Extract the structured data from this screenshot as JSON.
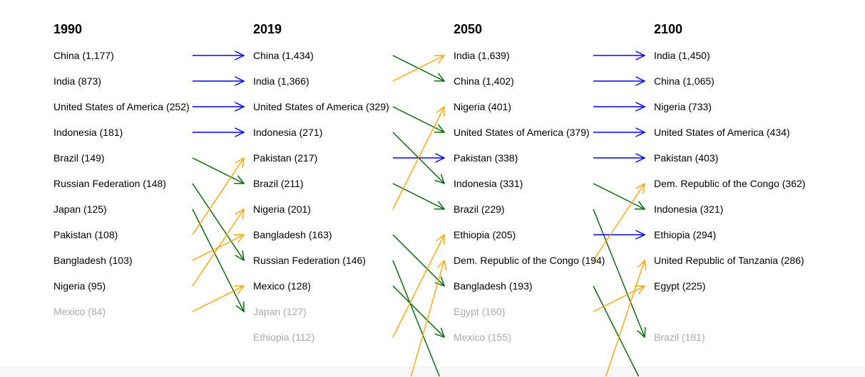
{
  "colors": {
    "same": "#0000ff",
    "down": "#006400",
    "up": "#ffa500",
    "out": "#aaaaaa"
  },
  "columns": [
    {
      "year": "1990",
      "items": [
        {
          "label": "China (1,177)"
        },
        {
          "label": "India (873)"
        },
        {
          "label": "United States of America (252)"
        },
        {
          "label": "Indonesia (181)"
        },
        {
          "label": "Brazil (149)"
        },
        {
          "label": "Russian Federation (148)"
        },
        {
          "label": "Japan (125)"
        },
        {
          "label": "Pakistan (108)"
        },
        {
          "label": "Bangladesh (103)"
        },
        {
          "label": "Nigeria (95)"
        },
        {
          "label": "Mexico (84)",
          "grey": true
        }
      ]
    },
    {
      "year": "2019",
      "items": [
        {
          "label": "China (1,434)"
        },
        {
          "label": "India (1,366)"
        },
        {
          "label": "United States of America (329)"
        },
        {
          "label": "Indonesia (271)"
        },
        {
          "label": "Pakistan (217)"
        },
        {
          "label": "Brazil (211)"
        },
        {
          "label": "Nigeria (201)"
        },
        {
          "label": "Bangladesh (163)"
        },
        {
          "label": "Russian Federation (146)"
        },
        {
          "label": "Mexico (128)"
        },
        {
          "label": "Japan (127)",
          "grey": true
        },
        {
          "label": "Ethiopia (112)",
          "grey": true
        }
      ]
    },
    {
      "year": "2050",
      "items": [
        {
          "label": "India (1,639)"
        },
        {
          "label": "China (1,402)"
        },
        {
          "label": "Nigeria (401)"
        },
        {
          "label": "United States of America (379)"
        },
        {
          "label": "Pakistan (338)"
        },
        {
          "label": "Indonesia (331)"
        },
        {
          "label": "Brazil (229)"
        },
        {
          "label": "Ethiopia (205)"
        },
        {
          "label": "Dem. Republic of the Congo (194)"
        },
        {
          "label": "Bangladesh (193)"
        },
        {
          "label": "Egypt (160)",
          "grey": true
        },
        {
          "label": "Mexico (155)",
          "grey": true
        }
      ]
    },
    {
      "year": "2100",
      "items": [
        {
          "label": "India (1,450)"
        },
        {
          "label": "China (1,065)"
        },
        {
          "label": "Nigeria (733)"
        },
        {
          "label": "United States of America (434)"
        },
        {
          "label": "Pakistan (403)"
        },
        {
          "label": "Dem. Republic of the Congo (362)"
        },
        {
          "label": "Indonesia (321)"
        },
        {
          "label": "Ethiopia (294)"
        },
        {
          "label": "United Republic of Tanzania (286)"
        },
        {
          "label": "Egypt (225)"
        },
        {
          "label": "",
          "grey": true
        },
        {
          "label": "Brazil (181)",
          "grey": true
        }
      ]
    }
  ],
  "transitions": [
    [
      [
        0,
        0,
        "same"
      ],
      [
        1,
        1,
        "same"
      ],
      [
        2,
        2,
        "same"
      ],
      [
        3,
        3,
        "same"
      ],
      [
        4,
        5,
        "down"
      ],
      [
        5,
        8,
        "down"
      ],
      [
        6,
        10,
        "down"
      ],
      [
        7,
        4,
        "up"
      ],
      [
        8,
        7,
        "up"
      ],
      [
        9,
        6,
        "up"
      ],
      [
        10,
        9,
        "up"
      ]
    ],
    [
      [
        0,
        1,
        "down"
      ],
      [
        1,
        0,
        "up"
      ],
      [
        2,
        3,
        "down"
      ],
      [
        3,
        5,
        "down"
      ],
      [
        4,
        4,
        "same"
      ],
      [
        5,
        6,
        "down"
      ],
      [
        6,
        2,
        "up"
      ],
      [
        7,
        9,
        "down"
      ],
      [
        8,
        13,
        "down"
      ],
      [
        9,
        11,
        "down"
      ],
      [
        11,
        7,
        "up"
      ],
      [
        15,
        8,
        "up"
      ]
    ],
    [
      [
        0,
        0,
        "same"
      ],
      [
        1,
        1,
        "same"
      ],
      [
        2,
        2,
        "same"
      ],
      [
        3,
        3,
        "same"
      ],
      [
        4,
        4,
        "same"
      ],
      [
        5,
        6,
        "down"
      ],
      [
        6,
        11,
        "down"
      ],
      [
        7,
        7,
        "same"
      ],
      [
        8,
        5,
        "up"
      ],
      [
        9,
        13,
        "down"
      ],
      [
        10,
        9,
        "up"
      ],
      [
        14,
        8,
        "up"
      ]
    ]
  ]
}
